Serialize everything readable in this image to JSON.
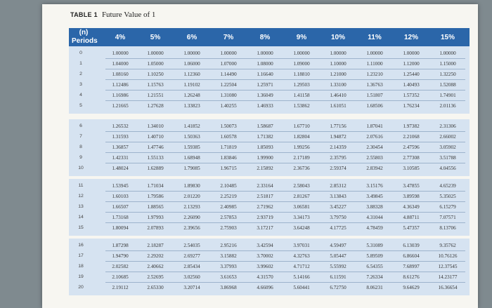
{
  "table": {
    "label": "TABLE 1",
    "title": "Future Value of 1",
    "header_n": "(n)",
    "header_periods": "Periods",
    "rates": [
      "4%",
      "5%",
      "6%",
      "7%",
      "8%",
      "9%",
      "10%",
      "11%",
      "12%",
      "15%"
    ]
  },
  "blocks": [
    [
      [
        "0",
        "1.00000",
        "1.00000",
        "1.00000",
        "1.00000",
        "1.00000",
        "1.00000",
        "1.00000",
        "1.00000",
        "1.00000",
        "1.00000"
      ],
      [
        "1",
        "1.04000",
        "1.05000",
        "1.06000",
        "1.07000",
        "1.08000",
        "1.09000",
        "1.10000",
        "1.11000",
        "1.12000",
        "1.15000"
      ],
      [
        "2",
        "1.08160",
        "1.10250",
        "1.12360",
        "1.14490",
        "1.16640",
        "1.18810",
        "1.21000",
        "1.23210",
        "1.25440",
        "1.32250"
      ],
      [
        "3",
        "1.12486",
        "1.15763",
        "1.19102",
        "1.22504",
        "1.25971",
        "1.29503",
        "1.33100",
        "1.36763",
        "1.40493",
        "1.52088"
      ],
      [
        "4",
        "1.16986",
        "1.21551",
        "1.26248",
        "1.31080",
        "1.36049",
        "1.41158",
        "1.46410",
        "1.51807",
        "1.57352",
        "1.74901"
      ],
      [
        "5",
        "1.21665",
        "1.27628",
        "1.33823",
        "1.40255",
        "1.46933",
        "1.53862",
        "1.61051",
        "1.68506",
        "1.76234",
        "2.01136"
      ]
    ],
    [
      [
        "6",
        "1.26532",
        "1.34010",
        "1.41852",
        "1.50073",
        "1.58687",
        "1.67710",
        "1.77156",
        "1.87041",
        "1.97382",
        "2.31306"
      ],
      [
        "7",
        "1.31593",
        "1.40710",
        "1.50363",
        "1.60578",
        "1.71382",
        "1.82804",
        "1.94872",
        "2.07616",
        "2.21068",
        "2.66002"
      ],
      [
        "8",
        "1.36857",
        "1.47746",
        "1.59385",
        "1.71819",
        "1.85093",
        "1.99256",
        "2.14359",
        "2.30454",
        "2.47596",
        "3.05902"
      ],
      [
        "9",
        "1.42331",
        "1.55133",
        "1.68948",
        "1.83846",
        "1.99900",
        "2.17189",
        "2.35795",
        "2.55803",
        "2.77308",
        "3.51788"
      ],
      [
        "10",
        "1.48024",
        "1.62889",
        "1.79085",
        "1.96715",
        "2.15892",
        "2.36736",
        "2.59374",
        "2.83942",
        "3.10585",
        "4.04556"
      ]
    ],
    [
      [
        "11",
        "1.53945",
        "1.71034",
        "1.89830",
        "2.10485",
        "2.33164",
        "2.58043",
        "2.85312",
        "3.15176",
        "3.47855",
        "4.65239"
      ],
      [
        "12",
        "1.60103",
        "1.79586",
        "2.01220",
        "2.25219",
        "2.51817",
        "2.81267",
        "3.13843",
        "3.49845",
        "3.89598",
        "5.35025"
      ],
      [
        "13",
        "1.66507",
        "1.88565",
        "2.13293",
        "2.40985",
        "2.71962",
        "3.06581",
        "3.45227",
        "3.88328",
        "4.36349",
        "6.15279"
      ],
      [
        "14",
        "1.73168",
        "1.97993",
        "2.26090",
        "2.57853",
        "2.93719",
        "3.34173",
        "3.79750",
        "4.31044",
        "4.88711",
        "7.07571"
      ],
      [
        "15",
        "1.80094",
        "2.07893",
        "2.39656",
        "2.75903",
        "3.17217",
        "3.64248",
        "4.17725",
        "4.78459",
        "5.47357",
        "8.13706"
      ]
    ],
    [
      [
        "16",
        "1.87298",
        "2.18287",
        "2.54035",
        "2.95216",
        "3.42594",
        "3.97031",
        "4.59497",
        "5.31089",
        "6.13039",
        "9.35762"
      ],
      [
        "17",
        "1.94790",
        "2.29202",
        "2.69277",
        "3.15882",
        "3.70002",
        "4.32763",
        "5.05447",
        "5.89509",
        "6.86604",
        "10.76126"
      ],
      [
        "18",
        "2.02582",
        "2.40662",
        "2.85434",
        "3.37993",
        "3.99602",
        "4.71712",
        "5.55992",
        "6.54355",
        "7.68997",
        "12.37545"
      ],
      [
        "19",
        "2.10685",
        "2.52695",
        "3.02560",
        "3.61653",
        "4.31570",
        "5.14166",
        "6.11591",
        "7.26334",
        "8.61276",
        "14.23177"
      ],
      [
        "20",
        "2.19112",
        "2.65330",
        "3.20714",
        "3.86968",
        "4.66096",
        "5.60441",
        "6.72750",
        "8.06231",
        "9.64629",
        "16.36654"
      ]
    ]
  ]
}
